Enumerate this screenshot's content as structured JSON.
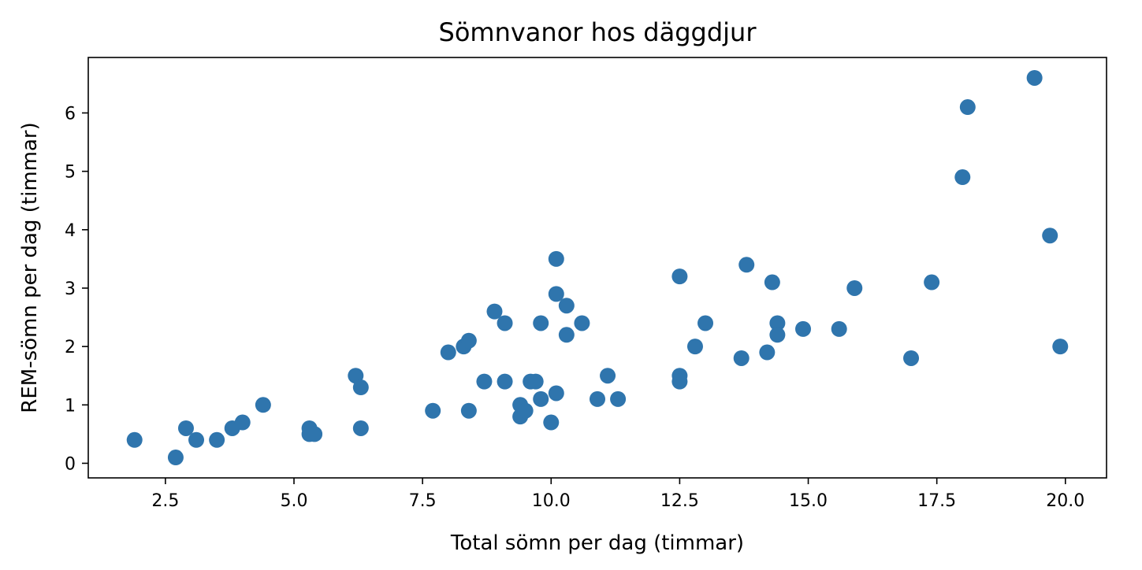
{
  "chart_data": {
    "type": "scatter",
    "title": "Sömnvanor hos däggdjur",
    "xlabel": "Total sömn per dag (timmar)",
    "ylabel": "REM-sömn per dag (timmar)",
    "xlim": [
      1.0,
      20.8
    ],
    "ylim": [
      -0.25,
      6.95
    ],
    "xticks": [
      "2.5",
      "5.0",
      "7.5",
      "10.0",
      "12.5",
      "15.0",
      "17.5",
      "20.0"
    ],
    "yticks": [
      "0",
      "1",
      "2",
      "3",
      "4",
      "5",
      "6"
    ],
    "grid": false,
    "marker_color": "#2f75ad",
    "points": [
      [
        1.9,
        0.4
      ],
      [
        2.7,
        0.1
      ],
      [
        2.9,
        0.6
      ],
      [
        3.1,
        0.4
      ],
      [
        3.5,
        0.4
      ],
      [
        3.8,
        0.6
      ],
      [
        4.0,
        0.7
      ],
      [
        4.4,
        1.0
      ],
      [
        5.3,
        0.5
      ],
      [
        5.3,
        0.6
      ],
      [
        5.4,
        0.5
      ],
      [
        6.2,
        1.5
      ],
      [
        6.3,
        1.3
      ],
      [
        6.3,
        0.6
      ],
      [
        7.7,
        0.9
      ],
      [
        8.0,
        1.9
      ],
      [
        8.3,
        2.0
      ],
      [
        8.4,
        2.1
      ],
      [
        8.4,
        0.9
      ],
      [
        8.7,
        1.4
      ],
      [
        8.9,
        2.6
      ],
      [
        9.1,
        2.4
      ],
      [
        9.1,
        1.4
      ],
      [
        9.4,
        1.0
      ],
      [
        9.4,
        0.8
      ],
      [
        9.5,
        0.9
      ],
      [
        9.6,
        1.4
      ],
      [
        9.7,
        1.4
      ],
      [
        9.8,
        2.4
      ],
      [
        9.8,
        1.1
      ],
      [
        10.0,
        0.7
      ],
      [
        10.1,
        3.5
      ],
      [
        10.1,
        2.9
      ],
      [
        10.1,
        1.2
      ],
      [
        10.3,
        2.7
      ],
      [
        10.3,
        2.2
      ],
      [
        10.6,
        2.4
      ],
      [
        10.9,
        1.1
      ],
      [
        11.1,
        1.5
      ],
      [
        11.3,
        1.1
      ],
      [
        12.5,
        3.2
      ],
      [
        12.5,
        1.5
      ],
      [
        12.5,
        1.4
      ],
      [
        12.8,
        2.0
      ],
      [
        13.0,
        2.4
      ],
      [
        13.7,
        1.8
      ],
      [
        13.8,
        3.4
      ],
      [
        14.2,
        1.9
      ],
      [
        14.3,
        3.1
      ],
      [
        14.4,
        2.4
      ],
      [
        14.4,
        2.2
      ],
      [
        14.9,
        2.3
      ],
      [
        15.6,
        2.3
      ],
      [
        15.9,
        3.0
      ],
      [
        17.0,
        1.8
      ],
      [
        17.4,
        3.1
      ],
      [
        18.0,
        4.9
      ],
      [
        18.1,
        6.1
      ],
      [
        19.4,
        6.6
      ],
      [
        19.7,
        3.9
      ],
      [
        19.9,
        2.0
      ]
    ]
  }
}
